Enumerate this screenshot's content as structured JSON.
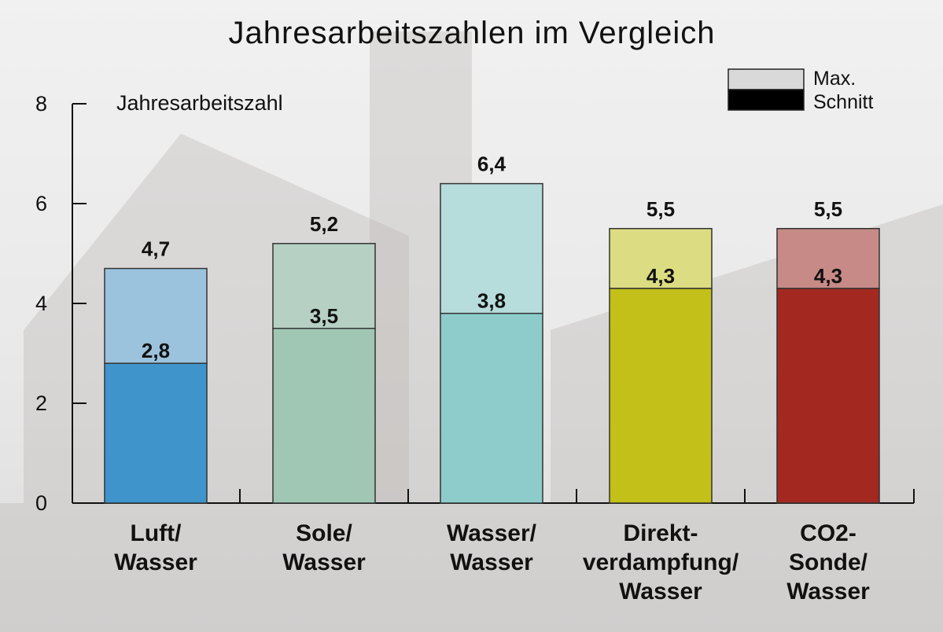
{
  "chart_data": {
    "type": "bar",
    "title": "Jahresarbeitszahlen im Vergleich",
    "ylabel": "Jahresarbeitszahl",
    "xlabel": "",
    "ylim": [
      0,
      8
    ],
    "yticks": [
      0,
      2,
      4,
      6,
      8
    ],
    "grid": false,
    "legend_position": "top-right",
    "categories": [
      [
        "Luft/",
        "Wasser"
      ],
      [
        "Sole/",
        "Wasser"
      ],
      [
        "Wasser/",
        "Wasser"
      ],
      [
        "Direkt-",
        "verdampfung/",
        "Wasser"
      ],
      [
        "CO2-",
        "Sonde/",
        "Wasser"
      ]
    ],
    "series": [
      {
        "name": "Schnitt",
        "values": [
          2.8,
          3.5,
          3.8,
          4.3,
          4.3
        ],
        "labels": [
          "2,8",
          "3,5",
          "3,8",
          "4,3",
          "4,3"
        ]
      },
      {
        "name": "Max.",
        "values": [
          4.7,
          5.2,
          6.4,
          5.5,
          5.5
        ],
        "labels": [
          "4,7",
          "5,2",
          "6,4",
          "5,5",
          "5,5"
        ]
      }
    ],
    "colors": {
      "avg": [
        "#3f95cb",
        "#9fc7b4",
        "#8dcccb",
        "#c3c01a",
        "#a3281f"
      ],
      "max": [
        "#9cc3dd",
        "#b6d1c4",
        "#b7dcdc",
        "#dcdc82",
        "#c78a86"
      ],
      "legend_max": "#d9d9d9",
      "legend_avg": "#000000"
    }
  }
}
